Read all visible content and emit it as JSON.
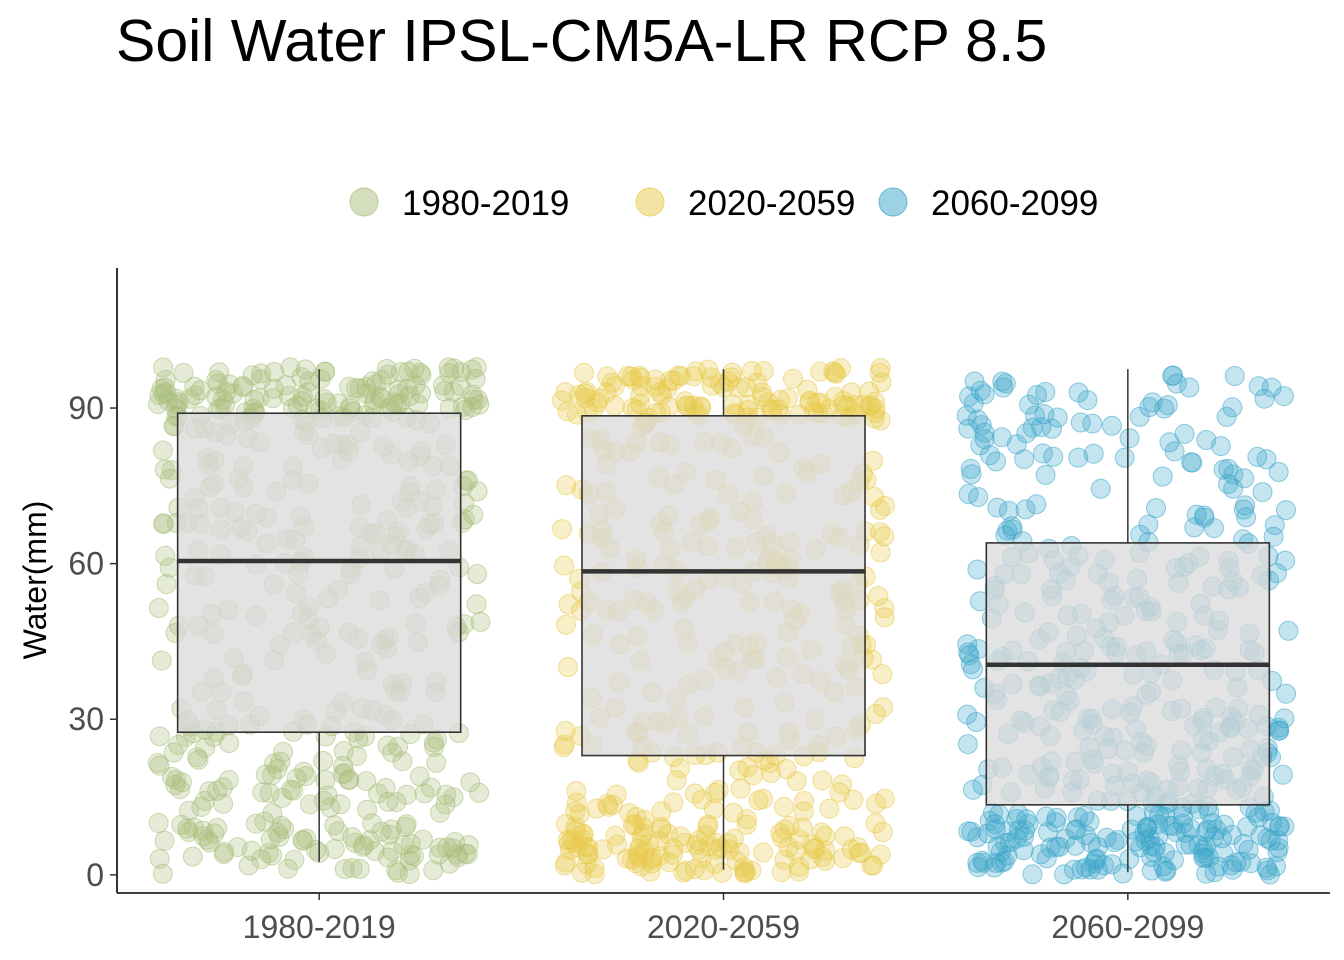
{
  "title": "Soil Water IPSL-CM5A-LR RCP 8.5",
  "chart_data": {
    "type": "box",
    "title": "Soil Water IPSL-CM5A-LR RCP 8.5",
    "xlabel": "",
    "ylabel": "Water(mm)",
    "ylim": [
      -3.5,
      117
    ],
    "yticks": [
      0,
      30,
      60,
      90
    ],
    "categories": [
      "1980-2019",
      "2020-2059",
      "2060-2099"
    ],
    "legend": {
      "position": "top",
      "entries": [
        "1980-2019",
        "2020-2059",
        "2060-2099"
      ]
    },
    "grid": false,
    "colors": {
      "1980-2019": "#a9bd7a",
      "2020-2059": "#e8c94a",
      "2060-2099": "#3aa6c9",
      "box_fill": "#d9d9d9"
    },
    "boxes": [
      {
        "category": "1980-2019",
        "whisker_low": 2.5,
        "q1": 27.5,
        "median": 60.5,
        "q3": 89,
        "whisker_high": 97.5
      },
      {
        "category": "2020-2059",
        "whisker_low": 1,
        "q1": 23,
        "median": 58.5,
        "q3": 88.5,
        "whisker_high": 97.5
      },
      {
        "category": "2060-2099",
        "whisker_low": 0.5,
        "q1": 13.5,
        "median": 40.5,
        "q3": 64,
        "whisker_high": 97.5
      }
    ],
    "point_density": {
      "1980-2019": [
        [
          0,
          10,
          0.16
        ],
        [
          10,
          30,
          0.2
        ],
        [
          30,
          88,
          0.38
        ],
        [
          88,
          98,
          0.26
        ]
      ],
      "2020-2059": [
        [
          0,
          10,
          0.24
        ],
        [
          10,
          30,
          0.16
        ],
        [
          30,
          88,
          0.36
        ],
        [
          88,
          98,
          0.24
        ]
      ],
      "2060-2099": [
        [
          0,
          12,
          0.3
        ],
        [
          12,
          64,
          0.48
        ],
        [
          64,
          97,
          0.22
        ]
      ]
    }
  }
}
